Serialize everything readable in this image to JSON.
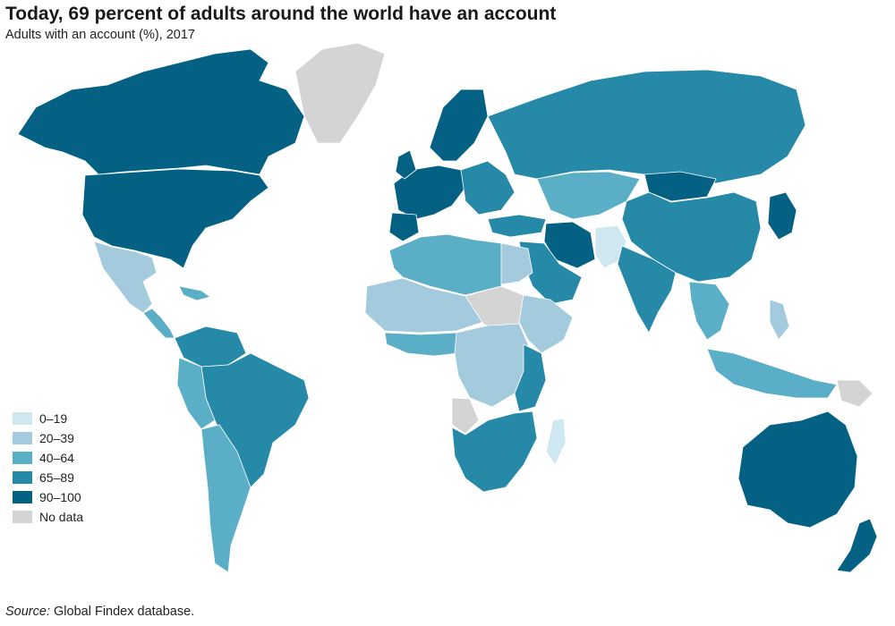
{
  "title": "Today, 69 percent of adults around the world have an account",
  "subtitle": "Adults with an account (%), 2017",
  "legend": [
    {
      "label": "0–19",
      "color": "#cfe7f1"
    },
    {
      "label": "20–39",
      "color": "#a3cbdd"
    },
    {
      "label": "40–64",
      "color": "#5aaec6"
    },
    {
      "label": "65–89",
      "color": "#2689a8"
    },
    {
      "label": "90–100",
      "color": "#046184"
    },
    {
      "label": "No data",
      "color": "#d4d4d4"
    }
  ],
  "source": {
    "prefix": "Source:",
    "text": " Global Findex database."
  }
}
